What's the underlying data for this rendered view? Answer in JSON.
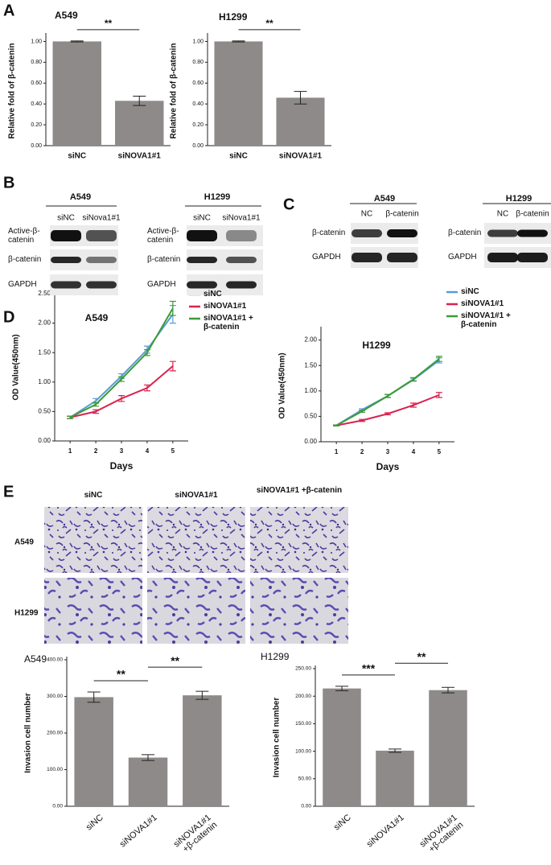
{
  "panel_labels": [
    "A",
    "B",
    "C",
    "D",
    "E"
  ],
  "chart_data": [
    {
      "type": "bar",
      "title": "A549",
      "y_label": "Relative fold of β-catenin",
      "categories": [
        "siNC",
        "siNOVA1#1"
      ],
      "values": [
        1.0,
        0.43
      ],
      "errors": [
        0.005,
        0.045
      ],
      "color": "#8e8a89",
      "ylim": [
        0,
        1.05
      ],
      "yticks": [
        {
          "value": 0,
          "label": "0.00"
        },
        {
          "value": 0.2,
          "label": "0.20"
        },
        {
          "value": 0.4,
          "label": "0.40"
        },
        {
          "value": 0.6,
          "label": "0.60"
        },
        {
          "value": 0.8,
          "label": "0.80"
        },
        {
          "value": 1.0,
          "label": "1.00"
        }
      ],
      "significance": [
        "**"
      ]
    },
    {
      "type": "bar",
      "title": "H1299",
      "y_label": "Relative fold of β-catenin",
      "categories": [
        "siNC",
        "siNOVA1#1"
      ],
      "values": [
        1.0,
        0.46
      ],
      "errors": [
        0.005,
        0.06
      ],
      "color": "#8e8a89",
      "ylim": [
        0,
        1.05
      ],
      "yticks": [
        {
          "value": 0,
          "label": "0.00"
        },
        {
          "value": 0.2,
          "label": "0.20"
        },
        {
          "value": 0.4,
          "label": "0.40"
        },
        {
          "value": 0.6,
          "label": "0.60"
        },
        {
          "value": 0.8,
          "label": "0.80"
        },
        {
          "value": 1.0,
          "label": "1.00"
        }
      ],
      "significance": [
        "**"
      ]
    },
    {
      "type": "line",
      "title": "A549",
      "x_label": "Days",
      "y_label": "OD Value(450nm)",
      "x": [
        1,
        2,
        3,
        4,
        5
      ],
      "xlim": [
        0.4,
        5.6
      ],
      "xticks": [
        1,
        2,
        3,
        4,
        5
      ],
      "ylim": [
        0,
        2.5
      ],
      "yticks": [
        {
          "value": 0,
          "label": "0.00"
        },
        {
          "value": 0.5,
          "label": "0.50"
        },
        {
          "value": 1.0,
          "label": "1.00"
        },
        {
          "value": 1.5,
          "label": "1.50"
        },
        {
          "value": 2.0,
          "label": "2.00"
        },
        {
          "value": 2.5,
          "label": "2.50"
        }
      ],
      "series": [
        {
          "name": "siNC",
          "color": "#5b9bd5",
          "values": [
            0.4,
            0.68,
            1.1,
            1.55,
            2.15
          ],
          "errors": [
            0.02,
            0.04,
            0.04,
            0.06,
            0.15
          ]
        },
        {
          "name": "siNOVA1#1",
          "color": "#d9234f",
          "values": [
            0.4,
            0.5,
            0.72,
            0.9,
            1.27
          ],
          "errors": [
            0.02,
            0.03,
            0.05,
            0.05,
            0.08
          ]
        },
        {
          "name": "siNOVA1#1 + β-catenin",
          "color": "#3d9b35",
          "values": [
            0.4,
            0.62,
            1.05,
            1.5,
            2.25
          ],
          "errors": [
            0.02,
            0.03,
            0.04,
            0.05,
            0.12
          ]
        }
      ]
    },
    {
      "type": "line",
      "title": "H1299",
      "x_label": "Days",
      "y_label": "OD Value(450nm)",
      "x": [
        1,
        2,
        3,
        4,
        5
      ],
      "xlim": [
        0.4,
        5.6
      ],
      "xticks": [
        1,
        2,
        3,
        4,
        5
      ],
      "ylim": [
        0,
        2.2
      ],
      "yticks": [
        {
          "value": 0,
          "label": "0.00"
        },
        {
          "value": 0.5,
          "label": "0.50"
        },
        {
          "value": 1.0,
          "label": "1.00"
        },
        {
          "value": 1.5,
          "label": "1.50"
        },
        {
          "value": 2.0,
          "label": "2.00"
        }
      ],
      "series": [
        {
          "name": "siNC",
          "color": "#5b9bd5",
          "values": [
            0.32,
            0.63,
            0.9,
            1.22,
            1.6
          ],
          "errors": [
            0.01,
            0.02,
            0.03,
            0.03,
            0.05
          ]
        },
        {
          "name": "siNOVA1#1",
          "color": "#d9234f",
          "values": [
            0.32,
            0.42,
            0.55,
            0.72,
            0.92
          ],
          "errors": [
            0.01,
            0.02,
            0.02,
            0.04,
            0.05
          ]
        },
        {
          "name": "siNOVA1#1 + β-catenin",
          "color": "#3d9b35",
          "values": [
            0.32,
            0.6,
            0.9,
            1.23,
            1.63
          ],
          "errors": [
            0.01,
            0.02,
            0.03,
            0.03,
            0.05
          ]
        }
      ]
    },
    {
      "type": "bar",
      "title": "A549",
      "y_label": "Invasion cell number",
      "categories": [
        "siNC",
        "siNOVA1#1",
        "siNOVA1#1 +β-catenin"
      ],
      "values": [
        298,
        133,
        303
      ],
      "errors": [
        14,
        8,
        11
      ],
      "color": "#8e8a89",
      "ylim": [
        0,
        400
      ],
      "yticks": [
        {
          "value": 0,
          "label": "0.00"
        },
        {
          "value": 100,
          "label": "100.00"
        },
        {
          "value": 200,
          "label": "200.00"
        },
        {
          "value": 300,
          "label": "300.00"
        },
        {
          "value": 400,
          "label": "400.00"
        }
      ],
      "significance": [
        "**",
        "**"
      ]
    },
    {
      "type": "bar",
      "title": "H1299",
      "y_label": "Invasion cell number",
      "categories": [
        "siNC",
        "siNOVA1#1",
        "siNOVA1#1 +β-catenin"
      ],
      "values": [
        214,
        101,
        211
      ],
      "errors": [
        4,
        3,
        5
      ],
      "color": "#8e8a89",
      "ylim": [
        0,
        250
      ],
      "yticks": [
        {
          "value": 0,
          "label": "0.00"
        },
        {
          "value": 50,
          "label": "50.00"
        },
        {
          "value": 100,
          "label": "100.00"
        },
        {
          "value": 150,
          "label": "150.00"
        },
        {
          "value": 200,
          "label": "200.00"
        },
        {
          "value": 250,
          "label": "250.00"
        }
      ],
      "significance": [
        "***",
        "**"
      ]
    }
  ],
  "blots": [
    {
      "cell_line": "A549",
      "lanes": [
        "siNC",
        "siNova1#1"
      ],
      "rows": [
        "Active-β-catenin",
        "β-catenin",
        "GAPDH"
      ]
    },
    {
      "cell_line": "H1299",
      "lanes": [
        "siNC",
        "siNova1#1"
      ],
      "rows": [
        "Active-β-catenin",
        "β-catenin",
        "GAPDH"
      ]
    },
    {
      "cell_line": "A549",
      "lanes": [
        "NC",
        "β-catenin"
      ],
      "rows": [
        "β-catenin",
        "GAPDH"
      ]
    },
    {
      "cell_line": "H1299",
      "lanes": [
        "NC",
        "β-catenin"
      ],
      "rows": [
        "β-catenin",
        "GAPDH"
      ]
    }
  ],
  "micrographs": {
    "columns": [
      "siNC",
      "siNOVA1#1",
      "siNOVA1#1 +β-catenin"
    ],
    "rows": [
      "A549",
      "H1299"
    ]
  }
}
